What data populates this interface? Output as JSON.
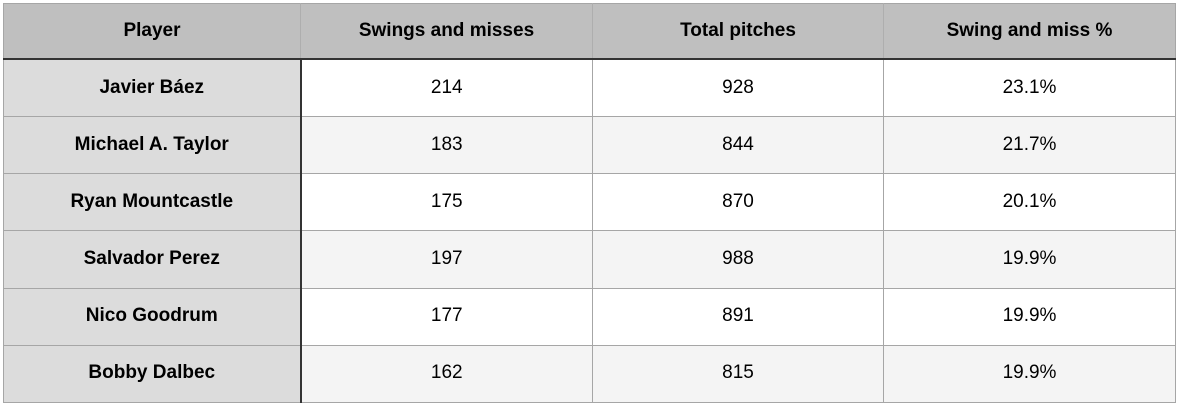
{
  "chart_data": {
    "type": "table",
    "columns": [
      "Player",
      "Swings and misses",
      "Total pitches",
      "Swing and miss %"
    ],
    "rows": [
      [
        "Javier Báez",
        214,
        928,
        "23.1%"
      ],
      [
        "Michael A. Taylor",
        183,
        844,
        "21.7%"
      ],
      [
        "Ryan Mountcastle",
        175,
        870,
        "20.1%"
      ],
      [
        "Salvador Perez",
        197,
        988,
        "19.9%"
      ],
      [
        "Nico Goodrum",
        177,
        891,
        "19.9%"
      ],
      [
        "Bobby Dalbec",
        162,
        815,
        "19.9%"
      ]
    ]
  },
  "colors": {
    "header_bg": "#bfbfbf",
    "player_column_bg": "#dcdcdc",
    "stripe_row_bg": "#f4f4f4",
    "plain_row_bg": "#ffffff",
    "dark_border": "#333333",
    "light_border": "#a6a6a6",
    "text": "#000000"
  }
}
